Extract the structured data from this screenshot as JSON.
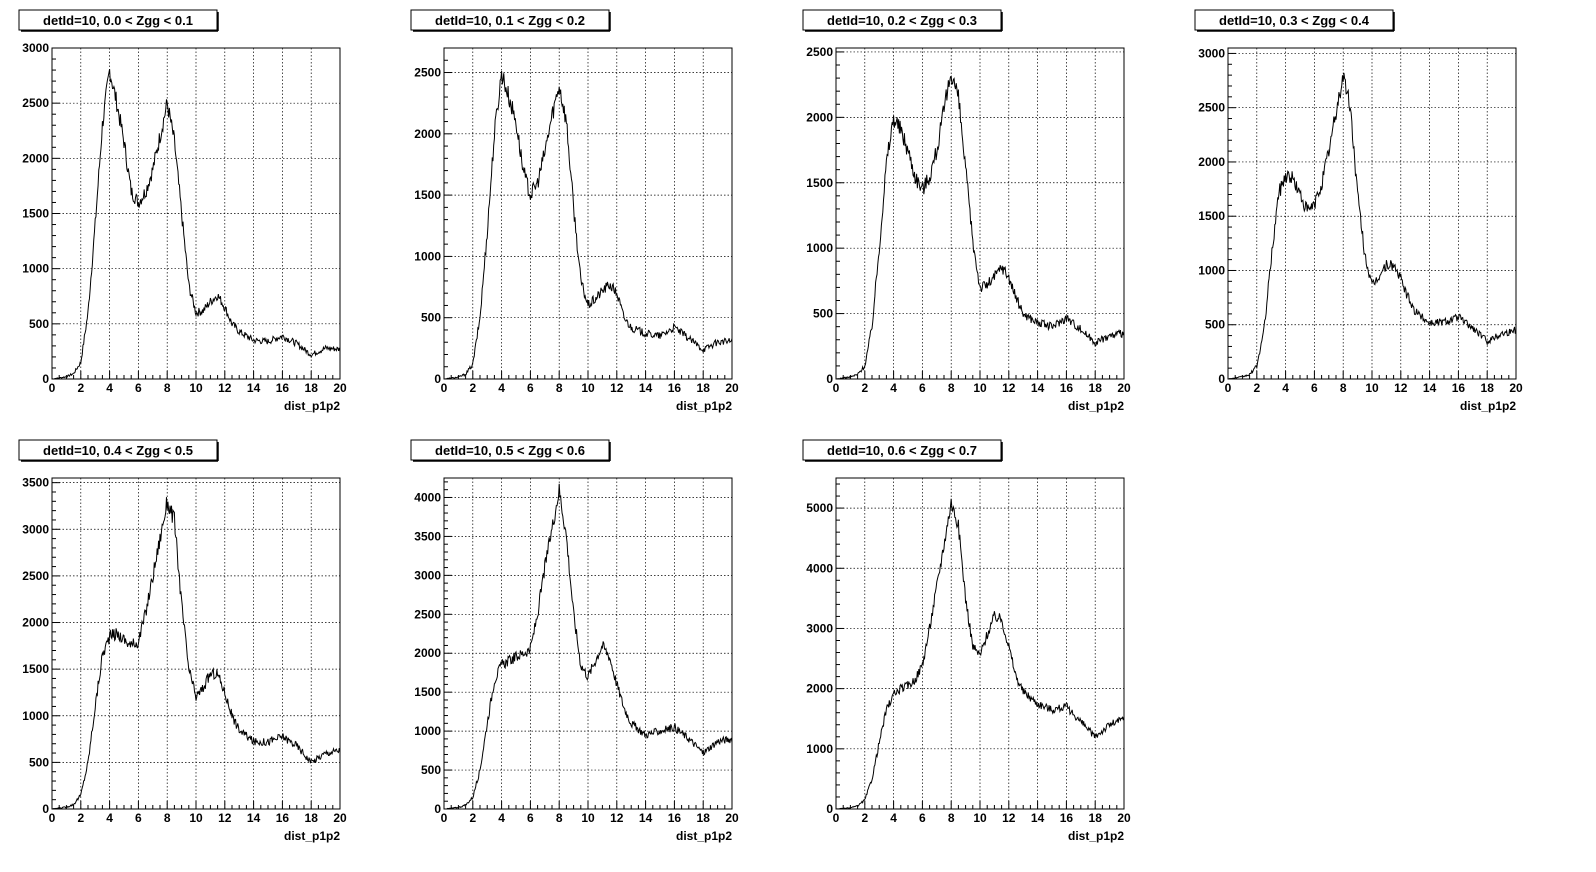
{
  "chart_data": [
    {
      "type": "line",
      "title": "detId=10, 0.0 < Zgg < 0.1",
      "xlabel": "dist_p1p2",
      "ylabel": "",
      "xlim": [
        0,
        20
      ],
      "ylim": [
        0,
        3000
      ],
      "grid": true,
      "xticks": [
        "0",
        "2",
        "4",
        "6",
        "8",
        "10",
        "12",
        "14",
        "16",
        "18",
        "20"
      ],
      "yticks": [
        "0",
        "500",
        "1000",
        "1500",
        "2000",
        "2500",
        "3000"
      ],
      "x": [
        0,
        1,
        1.5,
        2,
        2.5,
        3,
        3.5,
        4,
        4.5,
        5,
        5.5,
        6,
        6.5,
        7,
        7.5,
        8,
        8.5,
        9,
        9.5,
        10,
        10.5,
        11,
        11.5,
        12,
        12.5,
        13,
        14,
        15,
        16,
        17,
        18,
        19,
        20
      ],
      "values": [
        0,
        20,
        50,
        150,
        600,
        1400,
        2300,
        2800,
        2500,
        2150,
        1700,
        1600,
        1700,
        1900,
        2200,
        2500,
        2150,
        1500,
        850,
        600,
        620,
        700,
        760,
        650,
        500,
        430,
        350,
        340,
        390,
        320,
        220,
        280,
        270
      ]
    },
    {
      "type": "line",
      "title": "detId=10, 0.1 < Zgg < 0.2",
      "xlabel": "dist_p1p2",
      "ylabel": "",
      "xlim": [
        0,
        20
      ],
      "ylim": [
        0,
        2700
      ],
      "grid": true,
      "xticks": [
        "0",
        "2",
        "4",
        "6",
        "8",
        "10",
        "12",
        "14",
        "16",
        "18",
        "20"
      ],
      "yticks": [
        "0",
        "500",
        "1000",
        "1500",
        "2000",
        "2500"
      ],
      "x": [
        0,
        1,
        1.5,
        2,
        2.5,
        3,
        3.5,
        4,
        4.5,
        5,
        5.5,
        6,
        6.5,
        7,
        7.5,
        8,
        8.5,
        9,
        9.5,
        10,
        10.5,
        11,
        11.5,
        12,
        12.5,
        13,
        14,
        15,
        16,
        17,
        18,
        19,
        20
      ],
      "values": [
        0,
        15,
        40,
        120,
        500,
        1200,
        2000,
        2500,
        2300,
        2100,
        1700,
        1500,
        1600,
        1850,
        2150,
        2400,
        2100,
        1400,
        800,
        600,
        650,
        720,
        770,
        700,
        500,
        420,
        370,
        350,
        420,
        330,
        240,
        300,
        310
      ]
    },
    {
      "type": "line",
      "title": "detId=10, 0.2 < Zgg < 0.3",
      "xlabel": "dist_p1p2",
      "ylabel": "",
      "xlim": [
        0,
        20
      ],
      "ylim": [
        0,
        2530
      ],
      "grid": true,
      "xticks": [
        "0",
        "2",
        "4",
        "6",
        "8",
        "10",
        "12",
        "14",
        "16",
        "18",
        "20"
      ],
      "yticks": [
        "0",
        "500",
        "1000",
        "1500",
        "2000",
        "2500"
      ],
      "x": [
        0,
        1,
        1.5,
        2,
        2.5,
        3,
        3.5,
        4,
        4.5,
        5,
        5.5,
        6,
        6.5,
        7,
        7.5,
        8,
        8.5,
        9,
        9.5,
        10,
        10.5,
        11,
        11.5,
        12,
        12.5,
        13,
        14,
        15,
        16,
        17,
        18,
        19,
        20
      ],
      "values": [
        0,
        15,
        35,
        100,
        400,
        1000,
        1650,
        2000,
        1900,
        1750,
        1550,
        1450,
        1550,
        1750,
        2050,
        2350,
        2150,
        1600,
        1050,
        700,
        720,
        780,
        860,
        780,
        620,
        500,
        430,
        400,
        470,
        380,
        280,
        330,
        350
      ]
    },
    {
      "type": "line",
      "title": "detId=10, 0.3 < Zgg < 0.4",
      "xlabel": "dist_p1p2",
      "ylabel": "",
      "xlim": [
        0,
        20
      ],
      "ylim": [
        0,
        3050
      ],
      "grid": true,
      "xticks": [
        "0",
        "2",
        "4",
        "6",
        "8",
        "10",
        "12",
        "14",
        "16",
        "18",
        "20"
      ],
      "yticks": [
        "0",
        "500",
        "1000",
        "1500",
        "2000",
        "2500",
        "3000"
      ],
      "x": [
        0,
        1,
        1.5,
        2,
        2.5,
        3,
        3.5,
        4,
        4.5,
        5,
        5.5,
        6,
        6.5,
        7,
        7.5,
        8,
        8.5,
        9,
        9.5,
        10,
        10.5,
        11,
        11.5,
        12,
        12.5,
        13,
        14,
        15,
        16,
        17,
        18,
        19,
        20
      ],
      "values": [
        0,
        20,
        40,
        120,
        450,
        1100,
        1700,
        1880,
        1850,
        1700,
        1550,
        1600,
        1800,
        2100,
        2450,
        2800,
        2500,
        1700,
        1150,
        850,
        950,
        1050,
        1050,
        920,
        750,
        620,
        520,
        530,
        570,
        470,
        350,
        420,
        450
      ]
    },
    {
      "type": "line",
      "title": "detId=10, 0.4 < Zgg < 0.5",
      "xlabel": "dist_p1p2",
      "ylabel": "",
      "xlim": [
        0,
        20
      ],
      "ylim": [
        0,
        3550
      ],
      "grid": true,
      "xticks": [
        "0",
        "2",
        "4",
        "6",
        "8",
        "10",
        "12",
        "14",
        "16",
        "18",
        "20"
      ],
      "yticks": [
        "0",
        "500",
        "1000",
        "1500",
        "2000",
        "2500",
        "3000",
        "3500"
      ],
      "x": [
        0,
        1,
        1.5,
        2,
        2.5,
        3,
        3.5,
        4,
        4.5,
        5,
        5.5,
        6,
        6.5,
        7,
        7.5,
        8,
        8.5,
        9,
        9.5,
        10,
        10.5,
        11,
        11.5,
        12,
        12.5,
        13,
        14,
        15,
        16,
        17,
        18,
        19,
        20
      ],
      "values": [
        0,
        20,
        50,
        150,
        500,
        1100,
        1650,
        1850,
        1880,
        1820,
        1750,
        1800,
        2100,
        2500,
        2900,
        3300,
        3100,
        2200,
        1500,
        1200,
        1300,
        1450,
        1450,
        1250,
        1000,
        850,
        720,
        720,
        780,
        680,
        500,
        600,
        630
      ]
    },
    {
      "type": "line",
      "title": "detId=10, 0.5 < Zgg < 0.6",
      "xlabel": "dist_p1p2",
      "ylabel": "",
      "xlim": [
        0,
        20
      ],
      "ylim": [
        0,
        4250
      ],
      "grid": true,
      "xticks": [
        "0",
        "2",
        "4",
        "6",
        "8",
        "10",
        "12",
        "14",
        "16",
        "18",
        "20"
      ],
      "yticks": [
        "0",
        "500",
        "1000",
        "1500",
        "2000",
        "2500",
        "3000",
        "3500",
        "4000"
      ],
      "x": [
        0,
        1,
        1.5,
        2,
        2.5,
        3,
        3.5,
        4,
        4.5,
        5,
        5.5,
        6,
        6.5,
        7,
        7.5,
        8,
        8.5,
        9,
        9.5,
        10,
        10.5,
        11,
        11.5,
        12,
        12.5,
        13,
        14,
        15,
        16,
        17,
        18,
        19,
        20
      ],
      "values": [
        0,
        20,
        50,
        150,
        500,
        1100,
        1650,
        1850,
        1900,
        1950,
        2000,
        2050,
        2500,
        3100,
        3600,
        4100,
        3500,
        2500,
        1850,
        1700,
        1900,
        2100,
        1950,
        1600,
        1300,
        1100,
        950,
        1000,
        1050,
        900,
        720,
        870,
        900
      ]
    },
    {
      "type": "line",
      "title": "detId=10, 0.6 < Zgg < 0.7",
      "xlabel": "dist_p1p2",
      "ylabel": "",
      "xlim": [
        0,
        20
      ],
      "ylim": [
        0,
        5500
      ],
      "grid": true,
      "xticks": [
        "0",
        "2",
        "4",
        "6",
        "8",
        "10",
        "12",
        "14",
        "16",
        "18",
        "20"
      ],
      "yticks": [
        "0",
        "1000",
        "2000",
        "3000",
        "4000",
        "5000"
      ],
      "x": [
        0,
        1,
        1.5,
        2,
        2.5,
        3,
        3.5,
        4,
        4.5,
        5,
        5.5,
        6,
        6.5,
        7,
        7.5,
        8,
        8.5,
        9,
        9.5,
        10,
        10.5,
        11,
        11.5,
        12,
        12.5,
        13,
        14,
        15,
        16,
        17,
        18,
        19,
        20
      ],
      "values": [
        0,
        20,
        50,
        150,
        500,
        1100,
        1650,
        1900,
        2000,
        2050,
        2150,
        2400,
        3000,
        3700,
        4400,
        5100,
        4700,
        3500,
        2700,
        2550,
        2900,
        3200,
        3150,
        2700,
        2200,
        1950,
        1750,
        1650,
        1700,
        1450,
        1200,
        1400,
        1500
      ]
    }
  ]
}
